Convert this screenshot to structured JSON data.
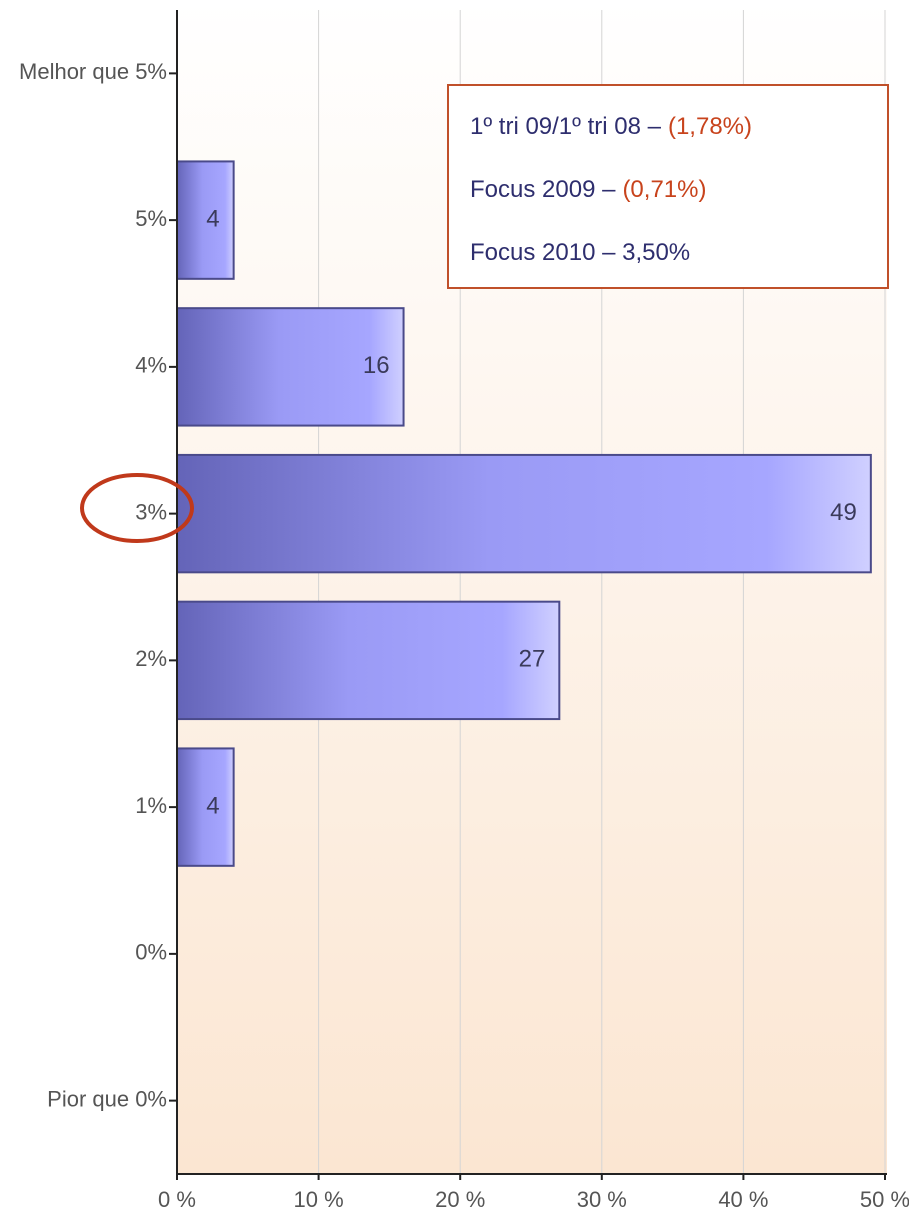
{
  "chart_data": {
    "type": "hbar",
    "categories": [
      "Melhor que 5%",
      "5%",
      "4%",
      "3%",
      "2%",
      "1%",
      "0%",
      "Pior que 0%"
    ],
    "values": [
      null,
      4,
      16,
      49,
      27,
      4,
      null,
      null
    ],
    "color": "#9a9af5",
    "xlim": [
      0,
      50
    ],
    "xticks": [
      {
        "value": 0,
        "label": "0 %"
      },
      {
        "value": 10,
        "label": "10 %"
      },
      {
        "value": 20,
        "label": "20 %"
      },
      {
        "value": 30,
        "label": "30 %"
      },
      {
        "value": 40,
        "label": "40 %"
      },
      {
        "value": 50,
        "label": "50 %"
      }
    ],
    "grid": true,
    "annotation": {
      "lines": [
        [
          {
            "text": "1º tri 09/1º tri 08 –",
            "color": "#2e2e6e"
          },
          {
            "text": "(1,78%)",
            "color": "#c8431c"
          }
        ],
        [
          {
            "text": "Focus 2009 –",
            "color": "#2e2e6e"
          },
          {
            "text": "(0,71%)",
            "color": "#c8431c"
          }
        ],
        [
          {
            "text": "Focus 2010 – 3,50%",
            "color": "#2e2e6e"
          }
        ]
      ]
    }
  }
}
